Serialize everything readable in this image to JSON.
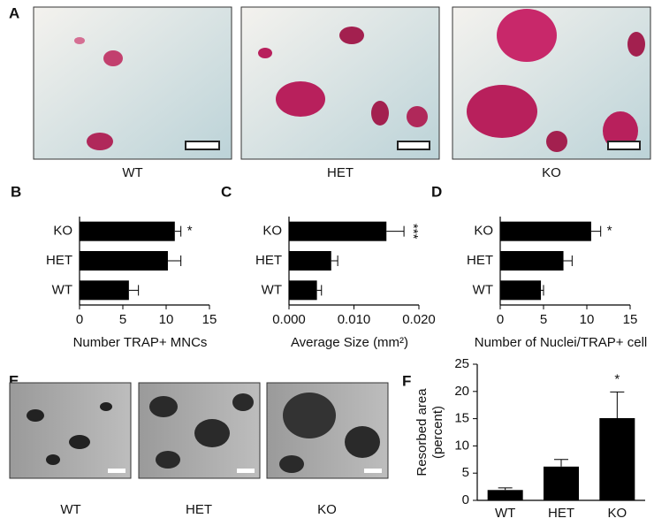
{
  "figure_a": {
    "panel": "A",
    "captions": [
      "WT",
      "HET",
      "KO"
    ]
  },
  "figure_e": {
    "panel": "E",
    "captions": [
      "WT",
      "HET",
      "KO"
    ]
  },
  "chart_data": [
    {
      "type": "barh",
      "panel": "B",
      "categories": [
        "KO",
        "HET",
        "WT"
      ],
      "values": [
        11.0,
        10.2,
        5.7
      ],
      "errors": [
        0.7,
        1.5,
        1.1
      ],
      "significance": [
        "*",
        null,
        null
      ],
      "color": "#000000",
      "xlim": [
        0,
        15
      ],
      "xticks": [
        0,
        5,
        10,
        15
      ],
      "xlabel": "Number TRAP+ MNCs"
    },
    {
      "type": "barh",
      "panel": "C",
      "categories": [
        "KO",
        "HET",
        "WT"
      ],
      "values": [
        0.015,
        0.0065,
        0.0043
      ],
      "errors": [
        0.0027,
        0.001,
        0.0007
      ],
      "significance": [
        "***",
        null,
        null
      ],
      "color": "#000000",
      "xlim": [
        0,
        0.02
      ],
      "xticks": [
        {
          "value": 0,
          "label": "0.000"
        },
        {
          "value": 0.01,
          "label": "0.010"
        },
        {
          "value": 0.02,
          "label": "0.020"
        }
      ],
      "xlabel": "Average Size (mm²)"
    },
    {
      "type": "barh",
      "panel": "D",
      "categories": [
        "KO",
        "HET",
        "WT"
      ],
      "values": [
        10.5,
        7.3,
        4.7
      ],
      "errors": [
        1.1,
        1.0,
        0.3
      ],
      "significance": [
        "*",
        null,
        null
      ],
      "color": "#000000",
      "xlim": [
        0,
        15
      ],
      "xticks": [
        0,
        5,
        10,
        15
      ],
      "xlabel": "Number of Nuclei/TRAP+ cell"
    },
    {
      "type": "bar",
      "panel": "F",
      "categories": [
        "WT",
        "HET",
        "KO"
      ],
      "values": [
        1.9,
        6.2,
        15.1
      ],
      "errors": [
        0.4,
        1.3,
        4.8
      ],
      "significance": [
        null,
        null,
        "*"
      ],
      "color": "#000000",
      "ylim": [
        0,
        25
      ],
      "yticks": [
        0,
        5,
        10,
        15,
        20,
        25
      ],
      "ylabel": [
        "Resorbed area",
        "(percent)"
      ]
    }
  ]
}
